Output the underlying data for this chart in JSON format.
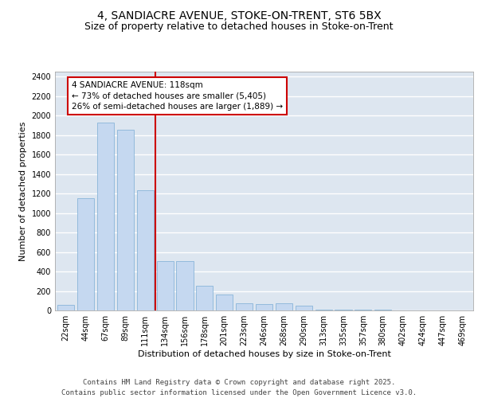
{
  "title_line1": "4, SANDIACRE AVENUE, STOKE-ON-TRENT, ST6 5BX",
  "title_line2": "Size of property relative to detached houses in Stoke-on-Trent",
  "xlabel": "Distribution of detached houses by size in Stoke-on-Trent",
  "ylabel": "Number of detached properties",
  "categories": [
    "22sqm",
    "44sqm",
    "67sqm",
    "89sqm",
    "111sqm",
    "134sqm",
    "156sqm",
    "178sqm",
    "201sqm",
    "223sqm",
    "246sqm",
    "268sqm",
    "290sqm",
    "313sqm",
    "335sqm",
    "357sqm",
    "380sqm",
    "402sqm",
    "424sqm",
    "447sqm",
    "469sqm"
  ],
  "values": [
    55,
    1155,
    1930,
    1850,
    1230,
    510,
    510,
    255,
    160,
    75,
    65,
    75,
    45,
    12,
    8,
    8,
    6,
    4,
    2,
    1,
    1
  ],
  "bar_color": "#c5d8f0",
  "bar_edge_color": "#7aadd4",
  "vline_color": "#cc0000",
  "annotation_text": "4 SANDIACRE AVENUE: 118sqm\n← 73% of detached houses are smaller (5,405)\n26% of semi-detached houses are larger (1,889) →",
  "annotation_box_color": "#ffffff",
  "annotation_box_edge": "#cc0000",
  "ylim": [
    0,
    2450
  ],
  "yticks": [
    0,
    200,
    400,
    600,
    800,
    1000,
    1200,
    1400,
    1600,
    1800,
    2000,
    2200,
    2400
  ],
  "background_color": "#dde6f0",
  "grid_color": "#ffffff",
  "footer_line1": "Contains HM Land Registry data © Crown copyright and database right 2025.",
  "footer_line2": "Contains public sector information licensed under the Open Government Licence v3.0.",
  "title_fontsize": 10,
  "subtitle_fontsize": 9,
  "label_fontsize": 8,
  "tick_fontsize": 7,
  "annotation_fontsize": 7.5,
  "footer_fontsize": 6.5
}
